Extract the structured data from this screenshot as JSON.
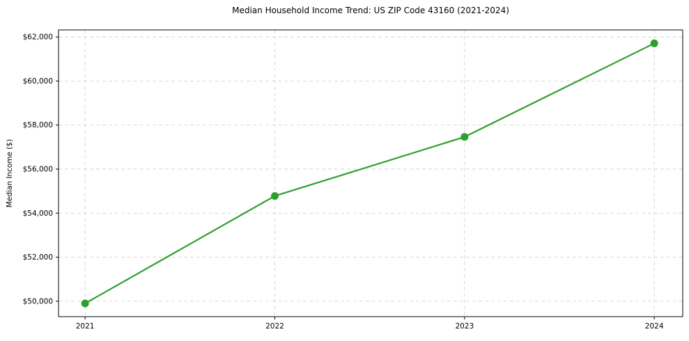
{
  "chart_data": {
    "type": "line",
    "title": "Median Household Income Trend: US ZIP Code 43160 (2021-2024)",
    "xlabel": "",
    "ylabel": "Median Income ($)",
    "x": [
      2021,
      2022,
      2023,
      2024
    ],
    "x_tick_labels": [
      "2021",
      "2022",
      "2023",
      "2024"
    ],
    "series": [
      {
        "name": "Median Household Income",
        "values": [
          49900,
          54780,
          57460,
          61710
        ]
      }
    ],
    "y_ticks": [
      50000,
      52000,
      54000,
      56000,
      58000,
      60000,
      62000
    ],
    "y_tick_labels": [
      "$50,000",
      "$52,000",
      "$54,000",
      "$56,000",
      "$58,000",
      "$60,000",
      "$62,000"
    ],
    "xlim": [
      2020.86,
      2024.15
    ],
    "ylim": [
      49300,
      62320
    ],
    "grid": true,
    "grid_style": "dashed",
    "legend_position": "none",
    "marker": "circle",
    "colors": {
      "line": "#2ca02c",
      "marker": "#2ca02c",
      "grid": "#d3d3d3",
      "spine": "#000000",
      "tick": "#000000",
      "text": "#000000",
      "background": "#ffffff"
    }
  }
}
